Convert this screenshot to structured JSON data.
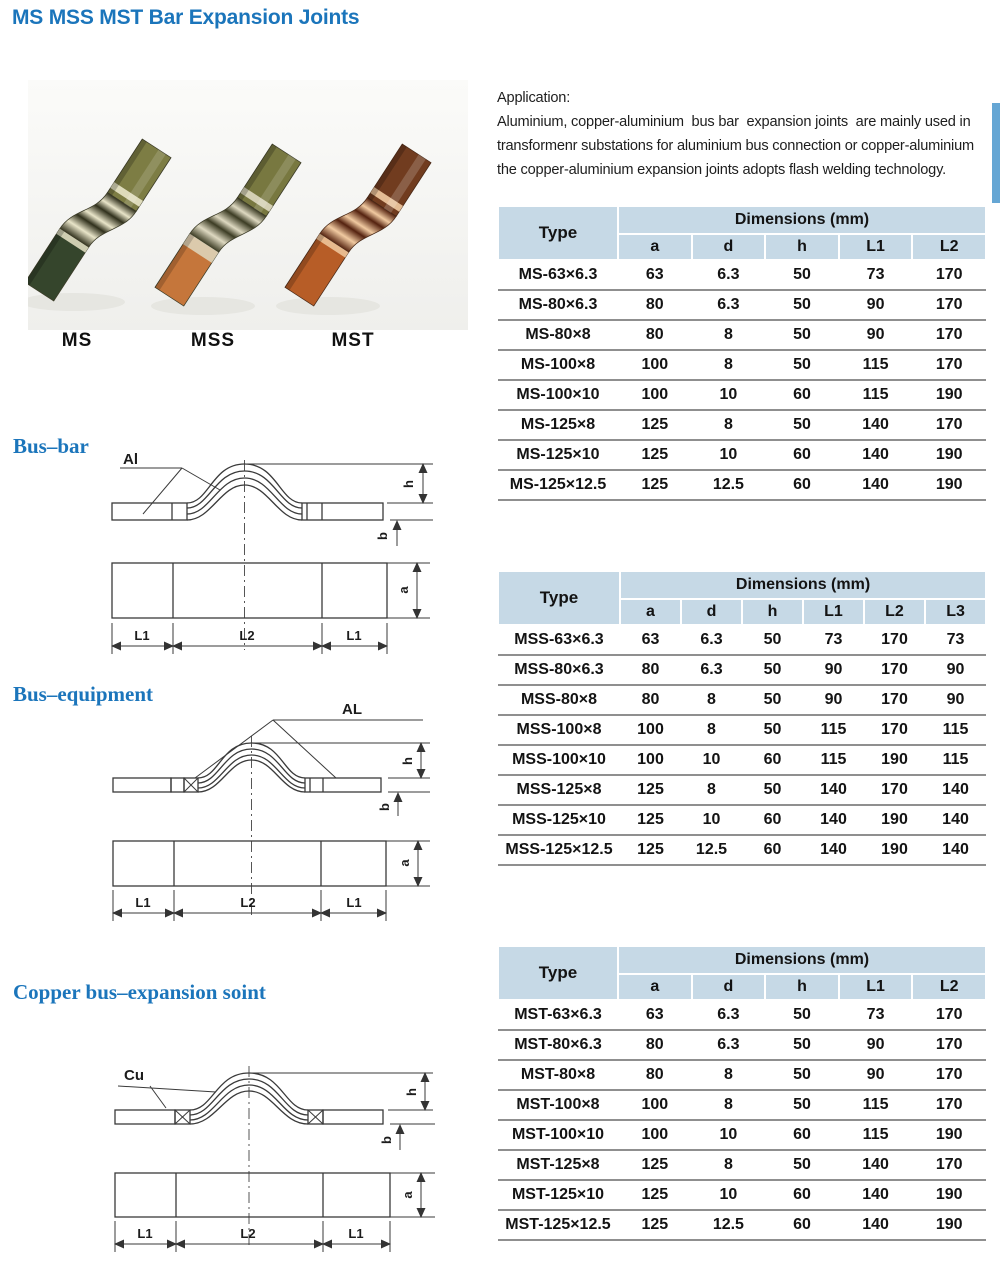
{
  "page": {
    "title": "MS MSS MST Bar Expansion Joints"
  },
  "accent": {
    "heading_blue": "#1b75bb",
    "table_header_bg": "#c6d9e6",
    "row_line_gray": "#8f8f8f"
  },
  "photo": {
    "items": [
      {
        "label": "MS",
        "colors": {
          "top": "#7d7d44",
          "mid_dark": "#30301c",
          "mid_light": "#e9e5c9",
          "bottom": "#35452c"
        }
      },
      {
        "label": "MSS",
        "colors": {
          "top": "#787840",
          "mid_dark": "#3c3c24",
          "mid_light": "#ded9c1",
          "bottom": "#c5763b"
        }
      },
      {
        "label": "MST",
        "colors": {
          "top": "#713c1f",
          "mid_dark": "#54220f",
          "mid_light": "#f1caa1",
          "bottom": "#b75d27"
        }
      }
    ]
  },
  "application": {
    "heading": "Application:",
    "lines": [
      "Aluminium, copper-aluminium  bus bar  expansion joints  are mainly used in",
      "transformenr substations for aluminium bus connection or copper-aluminium",
      "the copper-aluminium expansion joints adopts flash welding technology."
    ]
  },
  "diagrams": [
    {
      "heading": "Bus–bar",
      "material_label": "Al",
      "labels": {
        "h": "h",
        "b": "b",
        "a": "a",
        "l1": "L1",
        "l2": "L2"
      }
    },
    {
      "heading": "Bus–equipment",
      "material_label": "AL",
      "labels": {
        "h": "h",
        "b": "b",
        "a": "a",
        "l1": "L1",
        "l2": "L2"
      }
    },
    {
      "heading": "Copper bus–expansion soint",
      "material_label": "Cu",
      "labels": {
        "h": "h",
        "b": "b",
        "a": "a",
        "l1": "L1",
        "l2": "L2"
      }
    }
  ],
  "tables": [
    {
      "type_header": "Type",
      "dims_header": "Dimensions (mm)",
      "columns": [
        "a",
        "d",
        "h",
        "L1",
        "L2"
      ],
      "rows": [
        {
          "type": "MS-63×6.3",
          "values": [
            "63",
            "6.3",
            "50",
            "73",
            "170"
          ]
        },
        {
          "type": "MS-80×6.3",
          "values": [
            "80",
            "6.3",
            "50",
            "90",
            "170"
          ]
        },
        {
          "type": "MS-80×8",
          "values": [
            "80",
            "8",
            "50",
            "90",
            "170"
          ]
        },
        {
          "type": "MS-100×8",
          "values": [
            "100",
            "8",
            "50",
            "115",
            "170"
          ]
        },
        {
          "type": "MS-100×10",
          "values": [
            "100",
            "10",
            "60",
            "115",
            "190"
          ]
        },
        {
          "type": "MS-125×8",
          "values": [
            "125",
            "8",
            "50",
            "140",
            "170"
          ]
        },
        {
          "type": "MS-125×10",
          "values": [
            "125",
            "10",
            "60",
            "140",
            "190"
          ]
        },
        {
          "type": "MS-125×12.5",
          "values": [
            "125",
            "12.5",
            "60",
            "140",
            "190"
          ]
        }
      ]
    },
    {
      "type_header": "Type",
      "dims_header": "Dimensions (mm)",
      "columns": [
        "a",
        "d",
        "h",
        "L1",
        "L2",
        "L3"
      ],
      "rows": [
        {
          "type": "MSS-63×6.3",
          "values": [
            "63",
            "6.3",
            "50",
            "73",
            "170",
            "73"
          ]
        },
        {
          "type": "MSS-80×6.3",
          "values": [
            "80",
            "6.3",
            "50",
            "90",
            "170",
            "90"
          ]
        },
        {
          "type": "MSS-80×8",
          "values": [
            "80",
            "8",
            "50",
            "90",
            "170",
            "90"
          ]
        },
        {
          "type": "MSS-100×8",
          "values": [
            "100",
            "8",
            "50",
            "115",
            "170",
            "115"
          ]
        },
        {
          "type": "MSS-100×10",
          "values": [
            "100",
            "10",
            "60",
            "115",
            "190",
            "115"
          ]
        },
        {
          "type": "MSS-125×8",
          "values": [
            "125",
            "8",
            "50",
            "140",
            "170",
            "140"
          ]
        },
        {
          "type": "MSS-125×10",
          "values": [
            "125",
            "10",
            "60",
            "140",
            "190",
            "140"
          ]
        },
        {
          "type": "MSS-125×12.5",
          "values": [
            "125",
            "12.5",
            "60",
            "140",
            "190",
            "140"
          ]
        }
      ]
    },
    {
      "type_header": "Type",
      "dims_header": "Dimensions (mm)",
      "columns": [
        "a",
        "d",
        "h",
        "L1",
        "L2"
      ],
      "rows": [
        {
          "type": "MST-63×6.3",
          "values": [
            "63",
            "6.3",
            "50",
            "73",
            "170"
          ]
        },
        {
          "type": "MST-80×6.3",
          "values": [
            "80",
            "6.3",
            "50",
            "90",
            "170"
          ]
        },
        {
          "type": "MST-80×8",
          "values": [
            "80",
            "8",
            "50",
            "90",
            "170"
          ]
        },
        {
          "type": "MST-100×8",
          "values": [
            "100",
            "8",
            "50",
            "115",
            "170"
          ]
        },
        {
          "type": "MST-100×10",
          "values": [
            "100",
            "10",
            "60",
            "115",
            "190"
          ]
        },
        {
          "type": "MST-125×8",
          "values": [
            "125",
            "8",
            "50",
            "140",
            "170"
          ]
        },
        {
          "type": "MST-125×10",
          "values": [
            "125",
            "10",
            "60",
            "140",
            "190"
          ]
        },
        {
          "type": "MST-125×12.5",
          "values": [
            "125",
            "12.5",
            "60",
            "140",
            "190"
          ]
        }
      ]
    }
  ]
}
